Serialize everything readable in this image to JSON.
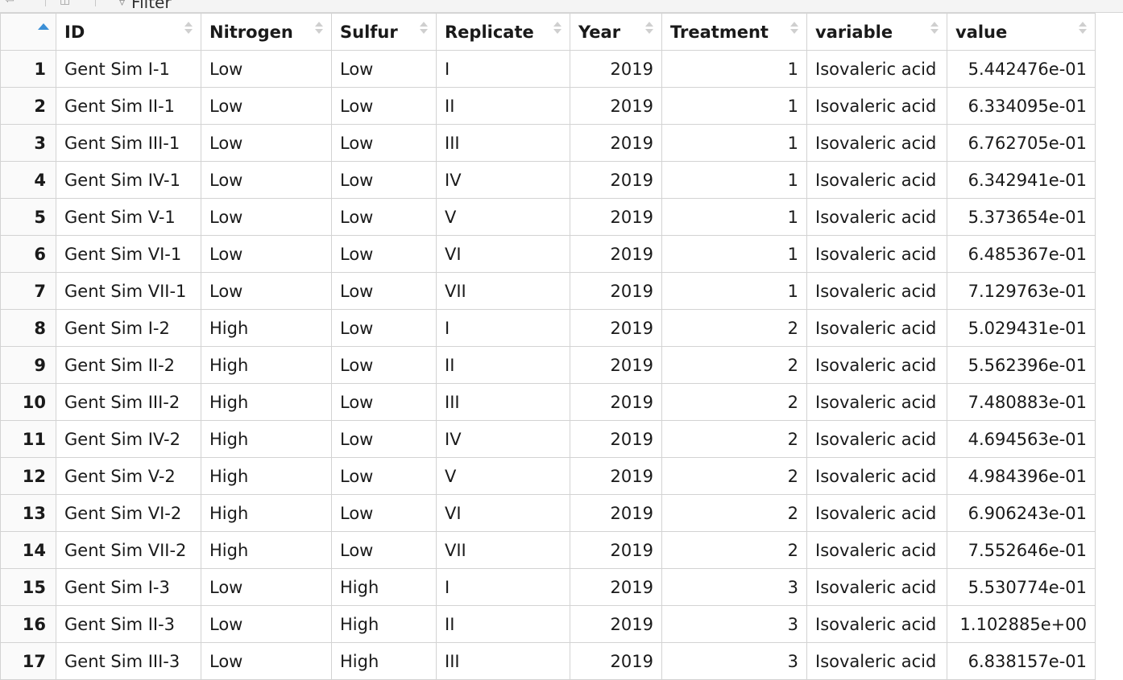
{
  "toolbar": {
    "filter_label": "Filter",
    "icons": [
      "back-arrow-icon",
      "popout-icon",
      "filter-icon"
    ]
  },
  "sort": {
    "column": "row",
    "direction": "ascending",
    "accent_color": "#3b8fd6"
  },
  "columns": [
    {
      "key": "ID",
      "label": "ID"
    },
    {
      "key": "Nitrogen",
      "label": "Nitrogen"
    },
    {
      "key": "Sulfur",
      "label": "Sulfur"
    },
    {
      "key": "Replicate",
      "label": "Replicate"
    },
    {
      "key": "Year",
      "label": "Year"
    },
    {
      "key": "Treatment",
      "label": "Treatment"
    },
    {
      "key": "variable",
      "label": "variable"
    },
    {
      "key": "value",
      "label": "value"
    }
  ],
  "rows": [
    {
      "n": "1",
      "cells": [
        "Gent Sim I-1",
        "Low",
        "Low",
        "I",
        "2019",
        "1",
        "Isovaleric acid",
        "5.442476e-01"
      ]
    },
    {
      "n": "2",
      "cells": [
        "Gent Sim II-1",
        "Low",
        "Low",
        "II",
        "2019",
        "1",
        "Isovaleric acid",
        "6.334095e-01"
      ]
    },
    {
      "n": "3",
      "cells": [
        "Gent Sim III-1",
        "Low",
        "Low",
        "III",
        "2019",
        "1",
        "Isovaleric acid",
        "6.762705e-01"
      ]
    },
    {
      "n": "4",
      "cells": [
        "Gent Sim IV-1",
        "Low",
        "Low",
        "IV",
        "2019",
        "1",
        "Isovaleric acid",
        "6.342941e-01"
      ]
    },
    {
      "n": "5",
      "cells": [
        "Gent Sim V-1",
        "Low",
        "Low",
        "V",
        "2019",
        "1",
        "Isovaleric acid",
        "5.373654e-01"
      ]
    },
    {
      "n": "6",
      "cells": [
        "Gent Sim VI-1",
        "Low",
        "Low",
        "VI",
        "2019",
        "1",
        "Isovaleric acid",
        "6.485367e-01"
      ]
    },
    {
      "n": "7",
      "cells": [
        "Gent Sim VII-1",
        "Low",
        "Low",
        "VII",
        "2019",
        "1",
        "Isovaleric acid",
        "7.129763e-01"
      ]
    },
    {
      "n": "8",
      "cells": [
        "Gent Sim I-2",
        "High",
        "Low",
        "I",
        "2019",
        "2",
        "Isovaleric acid",
        "5.029431e-01"
      ]
    },
    {
      "n": "9",
      "cells": [
        "Gent Sim II-2",
        "High",
        "Low",
        "II",
        "2019",
        "2",
        "Isovaleric acid",
        "5.562396e-01"
      ]
    },
    {
      "n": "10",
      "cells": [
        "Gent Sim III-2",
        "High",
        "Low",
        "III",
        "2019",
        "2",
        "Isovaleric acid",
        "7.480883e-01"
      ]
    },
    {
      "n": "11",
      "cells": [
        "Gent Sim IV-2",
        "High",
        "Low",
        "IV",
        "2019",
        "2",
        "Isovaleric acid",
        "4.694563e-01"
      ]
    },
    {
      "n": "12",
      "cells": [
        "Gent Sim V-2",
        "High",
        "Low",
        "V",
        "2019",
        "2",
        "Isovaleric acid",
        "4.984396e-01"
      ]
    },
    {
      "n": "13",
      "cells": [
        "Gent Sim VI-2",
        "High",
        "Low",
        "VI",
        "2019",
        "2",
        "Isovaleric acid",
        "6.906243e-01"
      ]
    },
    {
      "n": "14",
      "cells": [
        "Gent Sim VII-2",
        "High",
        "Low",
        "VII",
        "2019",
        "2",
        "Isovaleric acid",
        "7.552646e-01"
      ]
    },
    {
      "n": "15",
      "cells": [
        "Gent Sim I-3",
        "Low",
        "High",
        "I",
        "2019",
        "3",
        "Isovaleric acid",
        "5.530774e-01"
      ]
    },
    {
      "n": "16",
      "cells": [
        "Gent Sim II-3",
        "Low",
        "High",
        "II",
        "2019",
        "3",
        "Isovaleric acid",
        "1.102885e+00"
      ]
    },
    {
      "n": "17",
      "cells": [
        "Gent Sim III-3",
        "Low",
        "High",
        "III",
        "2019",
        "3",
        "Isovaleric acid",
        "6.838157e-01"
      ]
    }
  ]
}
